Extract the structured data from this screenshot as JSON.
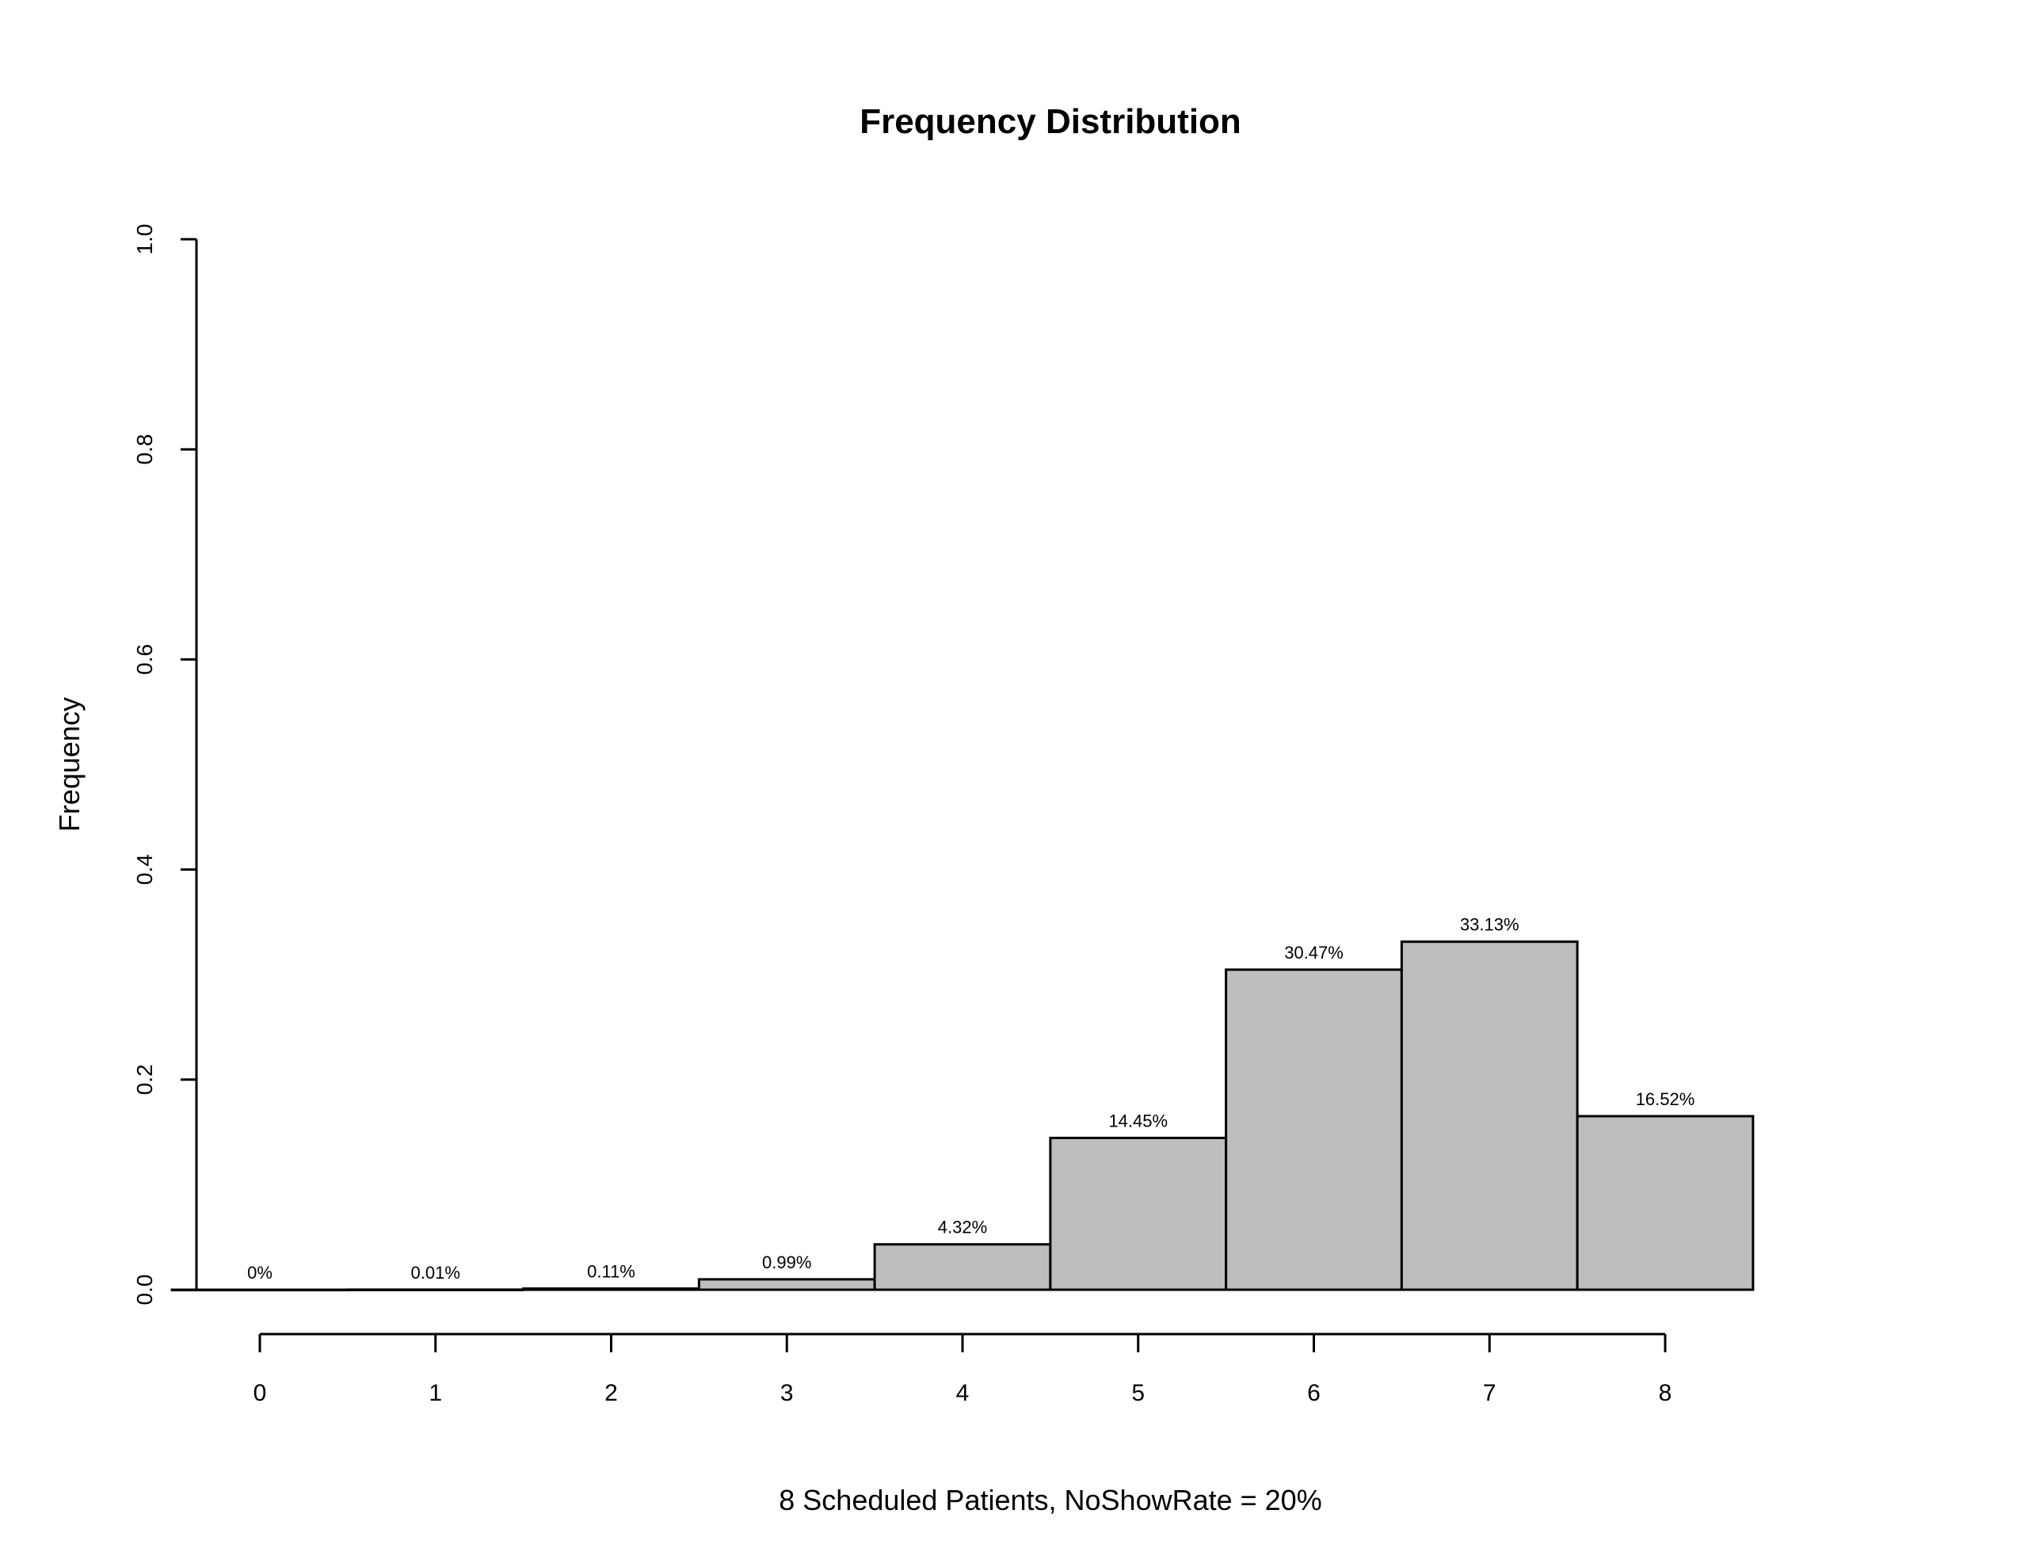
{
  "chart_data": {
    "type": "bar",
    "title": "Frequency Distribution",
    "xlabel": "8 Scheduled Patients,  NoShowRate = 20%",
    "ylabel": "Frequency",
    "categories": [
      "0",
      "1",
      "2",
      "3",
      "4",
      "5",
      "6",
      "7",
      "8"
    ],
    "values": [
      0,
      0.0001,
      0.0011,
      0.0099,
      0.0432,
      0.1445,
      0.3047,
      0.3313,
      0.1652
    ],
    "data_labels": [
      "0%",
      "0.01%",
      "0.11%",
      "0.99%",
      "4.32%",
      "14.45%",
      "30.47%",
      "33.13%",
      "16.52%"
    ],
    "ylim": [
      0,
      1.0
    ],
    "yticks": [
      "0.0",
      "0.2",
      "0.4",
      "0.6",
      "0.8",
      "1.0"
    ],
    "bar_color": "#bebebe",
    "grid": false
  }
}
